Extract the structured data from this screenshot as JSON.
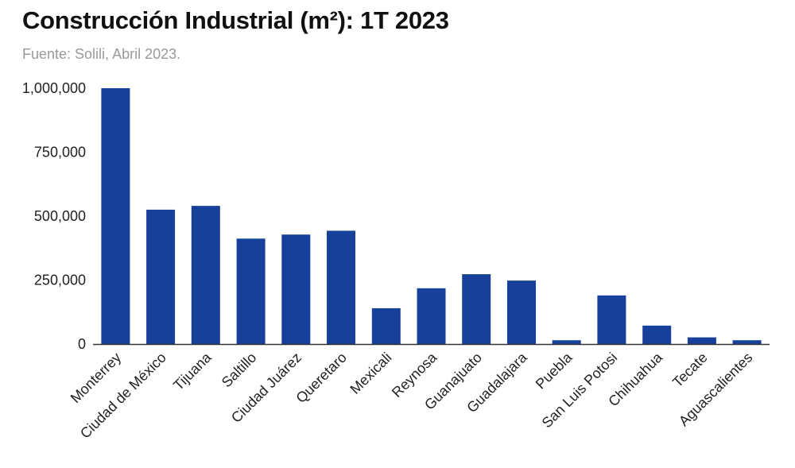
{
  "chart_data": {
    "type": "bar",
    "title": "Construcción Industrial (m²): 1T 2023",
    "subtitle": "Fuente: Solili, Abril 2023.",
    "categories": [
      "Monterrey",
      "Ciudad de México",
      "Tijuana",
      "Saltillo",
      "Ciudad Juárez",
      "Queretaro",
      "Mexicali",
      "Reynosa",
      "Guanajuato",
      "Guadalajara",
      "Puebla",
      "San Luis Potosi",
      "Chihuahua",
      "Tecate",
      "Aguascalientes"
    ],
    "values": [
      1000000,
      525000,
      540000,
      412000,
      428000,
      443000,
      140000,
      218000,
      273000,
      248000,
      15000,
      190000,
      72000,
      26000,
      15000
    ],
    "ylim": [
      0,
      1000000
    ],
    "yticks": [
      0,
      250000,
      500000,
      750000,
      1000000
    ],
    "ytick_labels": [
      "0",
      "250,000",
      "500,000",
      "750,000",
      "1,000,000"
    ],
    "xlabel": "",
    "ylabel": "",
    "grid": false,
    "bar_color": "#17409a",
    "axis_color": "#333333"
  }
}
